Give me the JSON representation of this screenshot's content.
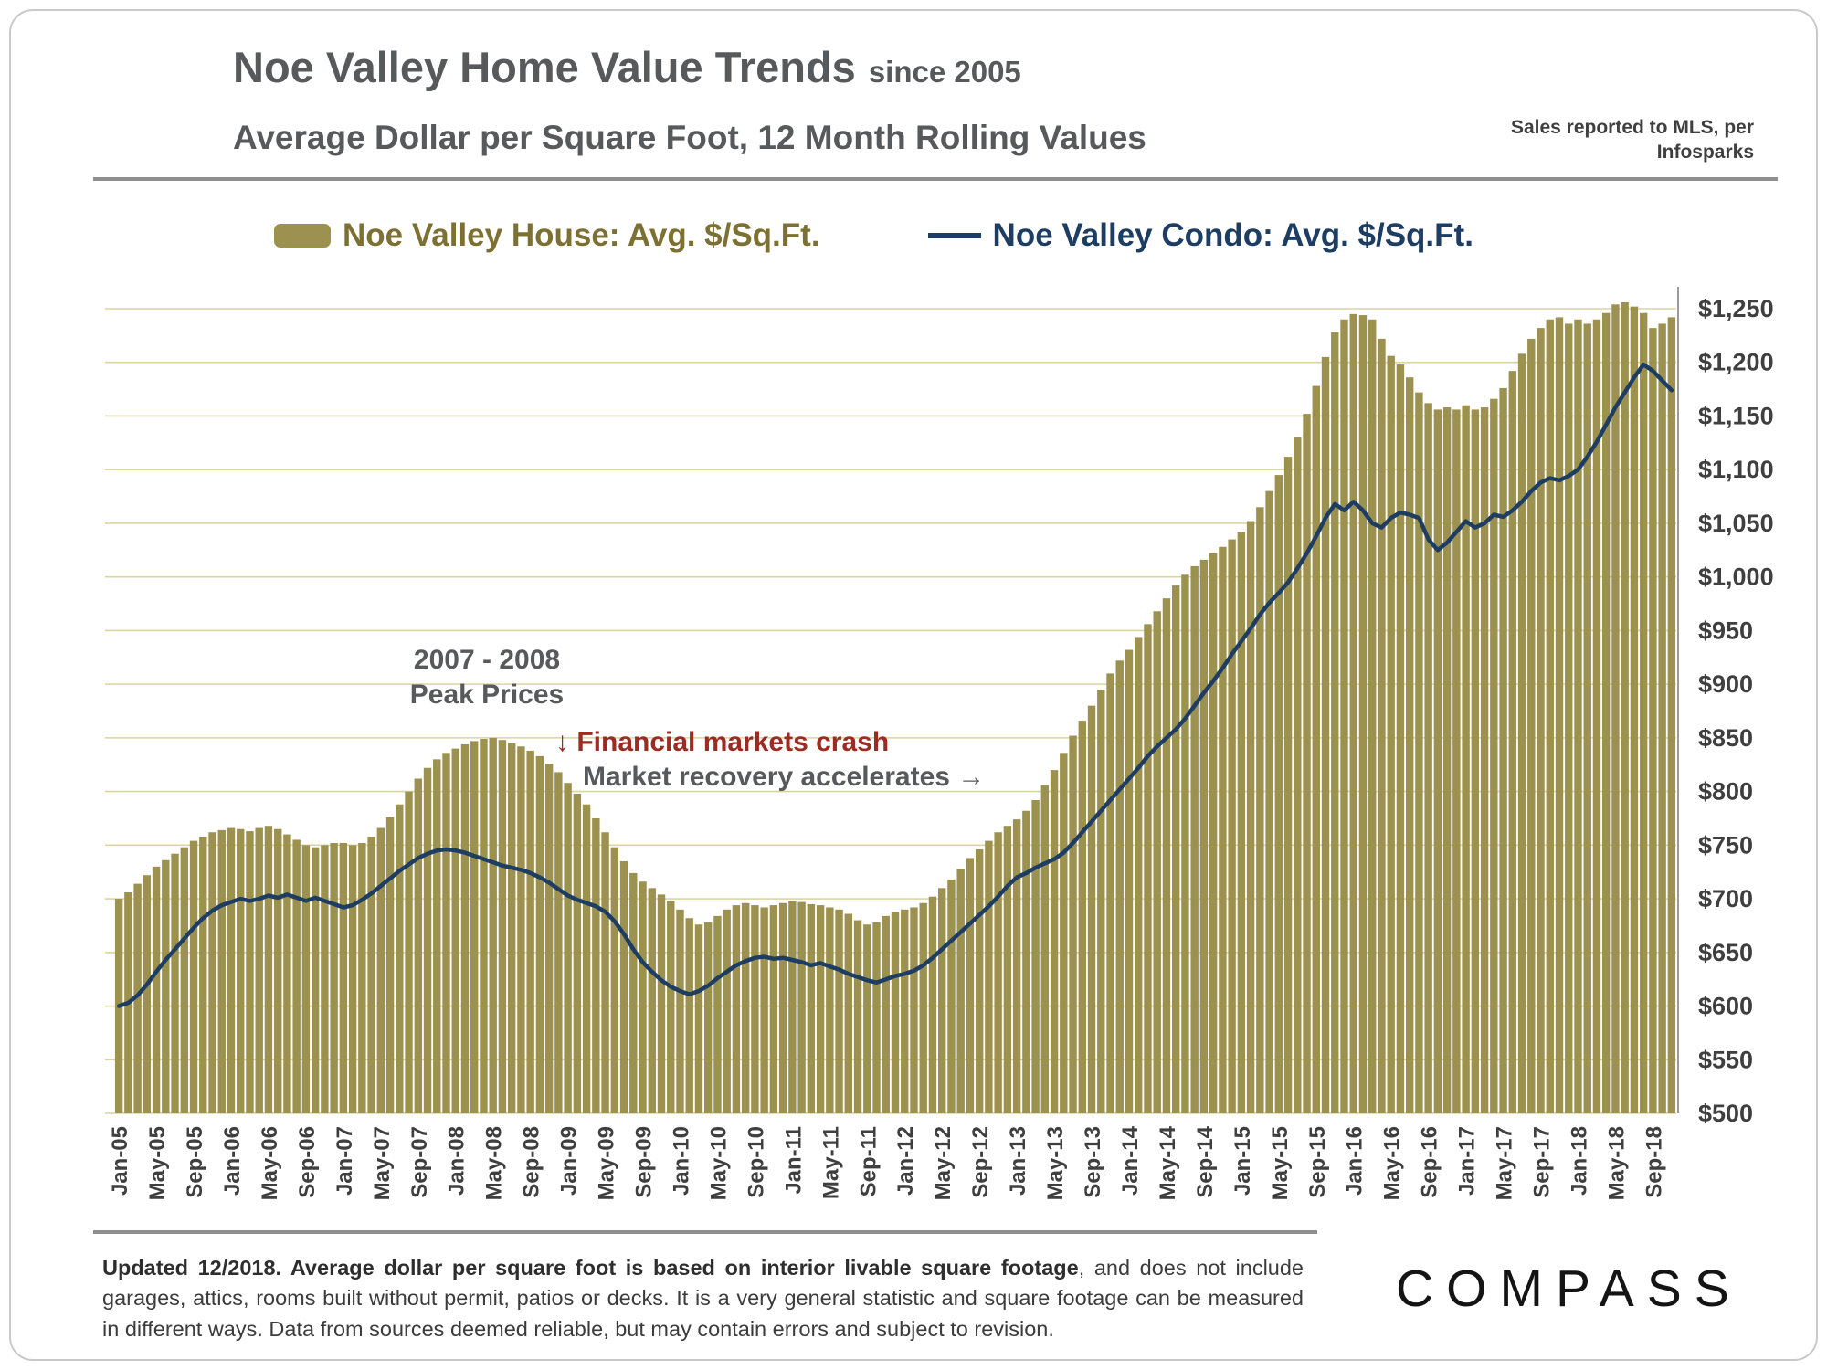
{
  "header": {
    "title": "Noe Valley Home Value Trends",
    "title_suffix": "since 2005",
    "subtitle": "Average Dollar per Square Foot, 12 Month Rolling Values",
    "source_note": "Sales reported to MLS, per Infosparks"
  },
  "legend": {
    "house_label": "Noe Valley House: Avg. $/Sq.Ft.",
    "condo_label": "Noe Valley Condo: Avg. $/Sq.Ft."
  },
  "annotations": {
    "peak_line1": "2007 - 2008",
    "peak_line2": "Peak Prices",
    "crash": "↓ Financial markets crash",
    "recovery": "Market recovery accelerates →"
  },
  "footer": {
    "bold_text": "Updated 12/2018. Average dollar per square foot is based on interior livable square footage",
    "regular_text": ", and does not include garages, attics, rooms built without permit, patios or decks. It is a very general statistic and square footage can be measured in different ways. Data from sources deemed reliable, but may contain errors and subject to revision.",
    "brand": "COMPASS"
  },
  "colors": {
    "house_bar": "#9C914E",
    "house_label": "#7C7132",
    "condo_line": "#1E3D63",
    "grid": "#D9D5A0",
    "crash_text": "#9C2B22",
    "title_text": "#58595B"
  },
  "chart_data": {
    "type": "bar+line",
    "title": "Noe Valley Home Value Trends since 2005",
    "subtitle": "Average Dollar per Square Foot, 12 Month Rolling Values",
    "x_start": "Jan-05",
    "x_end": "Nov-18",
    "x_frequency": "monthly",
    "x_tick_every": 4,
    "x_tick_labels": [
      "Jan-05",
      "May-05",
      "Sep-05",
      "Jan-06",
      "May-06",
      "Sep-06",
      "Jan-07",
      "May-07",
      "Sep-07",
      "Jan-08",
      "May-08",
      "Sep-08",
      "Jan-09",
      "May-09",
      "Sep-09",
      "Jan-10",
      "May-10",
      "Sep-10",
      "Jan-11",
      "May-11",
      "Sep-11",
      "Jan-12",
      "May-12",
      "Sep-12",
      "Jan-13",
      "May-13",
      "Sep-13",
      "Jan-14",
      "May-14",
      "Sep-14",
      "Jan-15",
      "May-15",
      "Sep-15",
      "Jan-16",
      "May-16",
      "Sep-16",
      "Jan-17",
      "May-17",
      "Sep-17",
      "Jan-18",
      "May-18",
      "Sep-18"
    ],
    "ylim": [
      500,
      1250
    ],
    "ytick_step": 50,
    "ytick_prefix": "$",
    "y_axis_side": "right",
    "grid": true,
    "legend_position": "top",
    "series": [
      {
        "name": "Noe Valley House: Avg. $/Sq.Ft.",
        "type": "bar",
        "color": "#9C914E",
        "values": [
          700,
          706,
          714,
          722,
          730,
          736,
          742,
          748,
          754,
          758,
          762,
          764,
          766,
          765,
          763,
          766,
          768,
          765,
          760,
          755,
          750,
          748,
          750,
          752,
          752,
          750,
          752,
          758,
          766,
          776,
          788,
          800,
          812,
          822,
          830,
          836,
          840,
          844,
          847,
          849,
          850,
          848,
          845,
          842,
          838,
          833,
          826,
          818,
          808,
          798,
          788,
          775,
          762,
          748,
          735,
          724,
          716,
          710,
          704,
          698,
          690,
          682,
          676,
          678,
          684,
          690,
          694,
          696,
          694,
          692,
          694,
          696,
          698,
          697,
          695,
          694,
          692,
          690,
          686,
          680,
          676,
          678,
          684,
          688,
          690,
          692,
          696,
          702,
          710,
          718,
          728,
          738,
          746,
          754,
          762,
          768,
          774,
          782,
          792,
          806,
          820,
          836,
          852,
          866,
          880,
          895,
          910,
          922,
          932,
          944,
          956,
          968,
          980,
          992,
          1002,
          1010,
          1016,
          1022,
          1028,
          1035,
          1042,
          1052,
          1065,
          1080,
          1095,
          1112,
          1130,
          1152,
          1178,
          1205,
          1228,
          1240,
          1245,
          1244,
          1240,
          1222,
          1206,
          1198,
          1186,
          1172,
          1162,
          1156,
          1158,
          1156,
          1160,
          1156,
          1158,
          1166,
          1176,
          1192,
          1208,
          1222,
          1232,
          1240,
          1242,
          1236,
          1240,
          1236,
          1240,
          1246,
          1254,
          1256,
          1252,
          1246,
          1232,
          1236,
          1242
        ]
      },
      {
        "name": "Noe Valley Condo: Avg. $/Sq.Ft.",
        "type": "line",
        "color": "#1E3D63",
        "values": [
          600,
          603,
          610,
          620,
          632,
          643,
          653,
          663,
          673,
          682,
          689,
          694,
          697,
          700,
          698,
          700,
          703,
          701,
          704,
          701,
          698,
          701,
          698,
          695,
          692,
          694,
          699,
          705,
          712,
          719,
          726,
          732,
          738,
          742,
          745,
          746,
          745,
          743,
          740,
          737,
          734,
          731,
          729,
          727,
          724,
          720,
          715,
          709,
          703,
          699,
          696,
          693,
          688,
          679,
          667,
          653,
          641,
          632,
          624,
          618,
          614,
          611,
          614,
          619,
          626,
          632,
          638,
          642,
          645,
          646,
          644,
          645,
          643,
          641,
          638,
          640,
          637,
          634,
          630,
          627,
          624,
          622,
          625,
          628,
          630,
          633,
          638,
          645,
          653,
          661,
          669,
          677,
          685,
          693,
          702,
          712,
          720,
          724,
          729,
          733,
          737,
          743,
          752,
          762,
          772,
          782,
          792,
          802,
          812,
          822,
          833,
          842,
          850,
          858,
          868,
          880,
          892,
          903,
          915,
          928,
          940,
          952,
          965,
          976,
          985,
          995,
          1008,
          1022,
          1038,
          1055,
          1068,
          1062,
          1070,
          1062,
          1050,
          1046,
          1055,
          1060,
          1058,
          1055,
          1035,
          1025,
          1032,
          1042,
          1052,
          1046,
          1050,
          1058,
          1056,
          1062,
          1070,
          1080,
          1088,
          1092,
          1090,
          1094,
          1100,
          1112,
          1126,
          1142,
          1158,
          1172,
          1186,
          1198,
          1192,
          1183,
          1174
        ]
      }
    ]
  }
}
